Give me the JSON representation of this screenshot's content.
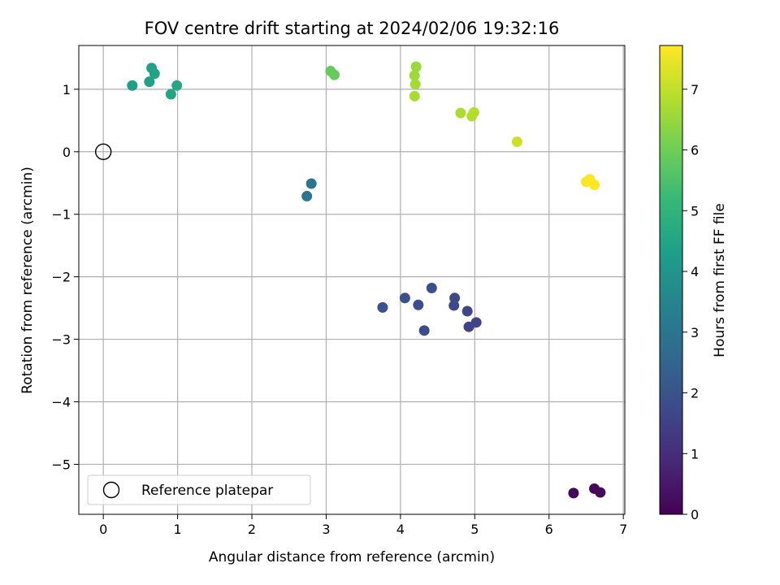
{
  "chart_data": {
    "type": "scatter",
    "title": "FOV centre drift starting at 2024/02/06 19:32:16",
    "xlabel": "Angular distance from reference (arcmin)",
    "ylabel": "Rotation from reference (arcmin)",
    "xlim": [
      -0.33,
      7.02
    ],
    "ylim": [
      -5.8,
      1.7
    ],
    "xticks": [
      0,
      1,
      2,
      3,
      4,
      5,
      6,
      7
    ],
    "yticks": [
      -5,
      -4,
      -3,
      -2,
      -1,
      0,
      1
    ],
    "grid": true,
    "colormap": "viridis",
    "colorbar": {
      "label": "Hours from first FF file",
      "range": [
        0,
        7.72
      ],
      "ticks": [
        0,
        1,
        2,
        3,
        4,
        5,
        6,
        7
      ]
    },
    "legend": {
      "position": "lower-left",
      "entries": [
        "Reference platepar"
      ]
    },
    "reference_point": {
      "x": 0,
      "y": 0
    },
    "points": [
      {
        "x": 6.33,
        "y": -5.46,
        "h": 0.1
      },
      {
        "x": 6.61,
        "y": -5.39,
        "h": 0.15
      },
      {
        "x": 6.69,
        "y": -5.45,
        "h": 0.2
      },
      {
        "x": 4.92,
        "y": -2.8,
        "h": 1.55
      },
      {
        "x": 5.02,
        "y": -2.73,
        "h": 1.6
      },
      {
        "x": 4.9,
        "y": -2.55,
        "h": 1.65
      },
      {
        "x": 4.72,
        "y": -2.46,
        "h": 1.7
      },
      {
        "x": 4.73,
        "y": -2.34,
        "h": 1.75
      },
      {
        "x": 4.32,
        "y": -2.86,
        "h": 1.8
      },
      {
        "x": 4.24,
        "y": -2.45,
        "h": 1.85
      },
      {
        "x": 4.42,
        "y": -2.18,
        "h": 1.9
      },
      {
        "x": 4.06,
        "y": -2.34,
        "h": 1.95
      },
      {
        "x": 3.76,
        "y": -2.49,
        "h": 2.0
      },
      {
        "x": 2.8,
        "y": -0.51,
        "h": 3.0
      },
      {
        "x": 2.74,
        "y": -0.71,
        "h": 3.05
      },
      {
        "x": 0.39,
        "y": 1.06,
        "h": 4.3
      },
      {
        "x": 0.62,
        "y": 1.12,
        "h": 4.35
      },
      {
        "x": 0.65,
        "y": 1.34,
        "h": 4.4
      },
      {
        "x": 0.69,
        "y": 1.25,
        "h": 4.45
      },
      {
        "x": 0.91,
        "y": 0.92,
        "h": 4.5
      },
      {
        "x": 0.99,
        "y": 1.06,
        "h": 4.55
      },
      {
        "x": 3.06,
        "y": 1.29,
        "h": 5.85
      },
      {
        "x": 3.11,
        "y": 1.23,
        "h": 5.9
      },
      {
        "x": 4.21,
        "y": 1.36,
        "h": 6.55
      },
      {
        "x": 4.19,
        "y": 1.22,
        "h": 6.6
      },
      {
        "x": 4.2,
        "y": 1.08,
        "h": 6.65
      },
      {
        "x": 4.19,
        "y": 0.89,
        "h": 6.7
      },
      {
        "x": 4.81,
        "y": 0.62,
        "h": 6.75
      },
      {
        "x": 4.96,
        "y": 0.57,
        "h": 6.8
      },
      {
        "x": 4.99,
        "y": 0.63,
        "h": 6.85
      },
      {
        "x": 5.57,
        "y": 0.16,
        "h": 7.15
      },
      {
        "x": 6.5,
        "y": -0.48,
        "h": 7.65
      },
      {
        "x": 6.55,
        "y": -0.44,
        "h": 7.68
      },
      {
        "x": 6.61,
        "y": -0.53,
        "h": 7.72
      }
    ]
  }
}
